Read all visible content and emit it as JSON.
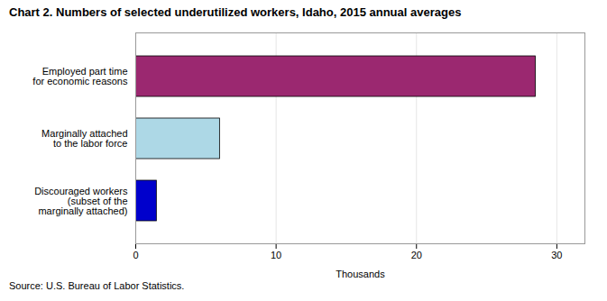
{
  "chart_data": {
    "type": "bar",
    "orientation": "horizontal",
    "title": "Chart 2.  Numbers of selected underutilized workers, Idaho, 2015 annual averages",
    "categories": [
      "Discouraged workers\n(subset of the\nmarginally attached)",
      "Marginally attached\nto the labor force",
      "Employed part time\nfor economic reasons"
    ],
    "values": [
      1.5,
      6.0,
      28.5
    ],
    "colors": [
      "#0000CC",
      "#ADD8E6",
      "#9B2870"
    ],
    "xlabel": "Thousands",
    "xlim": [
      0,
      32
    ],
    "xticks": [
      0,
      10,
      20,
      30
    ],
    "grid": true,
    "caption": "Source: U.S. Bureau of Labor Statistics."
  }
}
